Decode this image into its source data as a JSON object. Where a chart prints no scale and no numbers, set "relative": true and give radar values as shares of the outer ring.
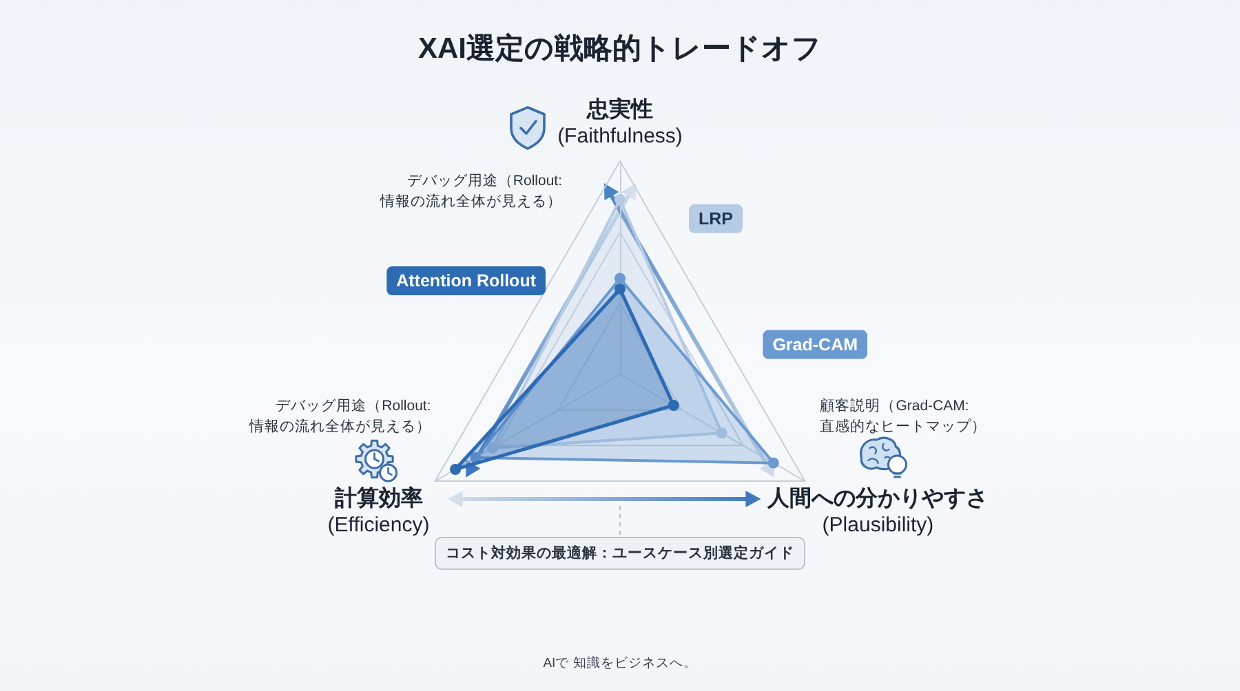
{
  "chart_data": {
    "type": "radar",
    "title": "XAI選定の戦略的トレードオフ",
    "categories": [
      "忠実性\n(Faithfulness)",
      "人間への分かりやすさ\n(Plausibility)",
      "計算効率\n(Efficiency)"
    ],
    "relative": true,
    "grid": true,
    "marker": "circle",
    "series": [
      {
        "name": "Attention Rollout",
        "color": "#2d6bb3",
        "values": [
          0.4,
          0.29,
          0.89
        ]
      },
      {
        "name": "Grad-CAM",
        "color": "#6b9ad0",
        "values": [
          0.45,
          0.83,
          0.78
        ]
      },
      {
        "name": "LRP",
        "color": "#b6cbe4",
        "values": [
          0.82,
          0.55,
          0.69
        ]
      }
    ],
    "annotations": [
      "デバッグ用途（Rollout:\n情報の流れ全体が見える）",
      "デバッグ用途（Rollout:\n情報の流れ全体が見える）",
      "顧客説明（Grad-CAM:\n直感的なヒートマップ）",
      "コスト対効果の最適解：ユースケース別選定ガイド",
      "AIで 知識をビジネスへ。"
    ]
  }
}
